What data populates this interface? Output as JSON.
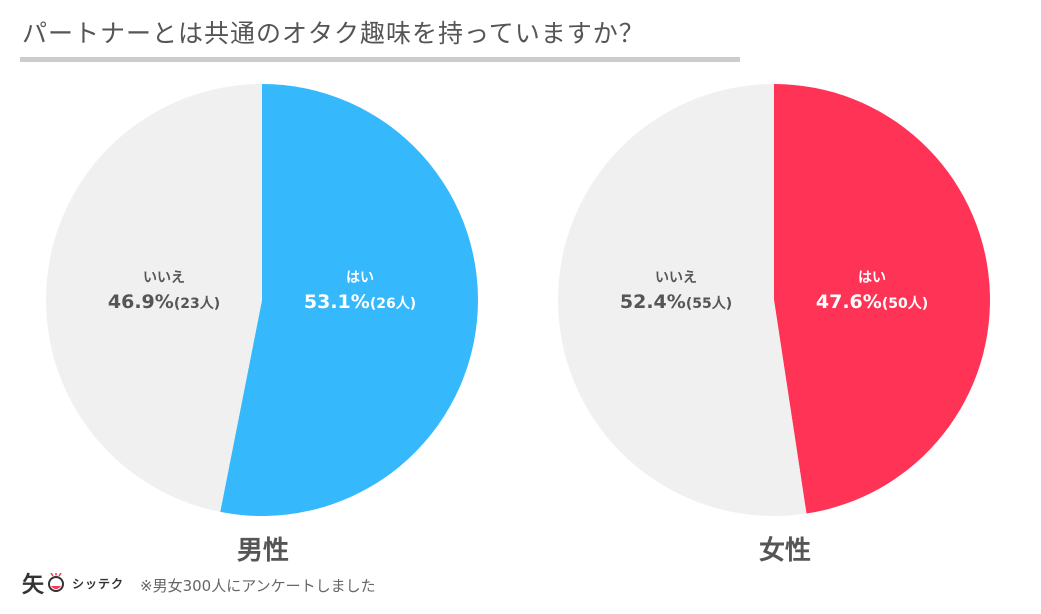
{
  "title": "パートナーとは共通のオタク趣味を持っていますか？",
  "colors": {
    "male_yes": "#35B8FC",
    "female_yes": "#FE3355",
    "no": "#F0F0F0",
    "title_rule": "#CCCCCC",
    "text_dark": "#555555"
  },
  "chart_data": [
    {
      "type": "pie",
      "group": "男性",
      "slices": [
        {
          "label": "はい",
          "percent": 53.1,
          "count_text": "(26人)",
          "value_text": "53.1%"
        },
        {
          "label": "いいえ",
          "percent": 46.9,
          "count_text": "(23人)",
          "value_text": "46.9%"
        }
      ]
    },
    {
      "type": "pie",
      "group": "女性",
      "slices": [
        {
          "label": "はい",
          "percent": 47.6,
          "count_text": "(50人)",
          "value_text": "47.6%"
        },
        {
          "label": "いいえ",
          "percent": 52.4,
          "count_text": "(55人)",
          "value_text": "52.4%"
        }
      ]
    }
  ],
  "footer": {
    "logo_char": "矢",
    "logo_text": "シッテク",
    "note": "※男女300人にアンケートしました"
  }
}
